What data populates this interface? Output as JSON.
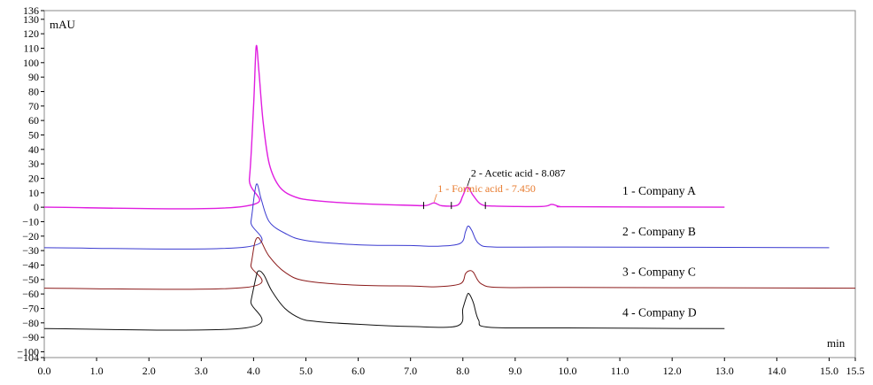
{
  "chart_data": {
    "type": "line",
    "xlabel": "min",
    "ylabel": "mAU",
    "xlim": [
      0.0,
      15.5
    ],
    "ylim": [
      -104,
      136
    ],
    "x_ticks": [
      "0.0",
      "1.0",
      "2.0",
      "3.0",
      "4.0",
      "5.0",
      "6.0",
      "7.0",
      "8.0",
      "9.0",
      "10.0",
      "11.0",
      "12.0",
      "13.0",
      "14.0",
      "15.0",
      "15.5"
    ],
    "x_tick_values": [
      0,
      1,
      2,
      3,
      4,
      5,
      6,
      7,
      8,
      9,
      10,
      11,
      12,
      13,
      14,
      15,
      15.5
    ],
    "y_ticks": [
      "136",
      "130",
      "120",
      "110",
      "100",
      "90",
      "80",
      "70",
      "60",
      "50",
      "40",
      "30",
      "20",
      "10",
      "0",
      "−10",
      "−20",
      "−30",
      "−40",
      "−50",
      "−60",
      "−70",
      "−80",
      "−90",
      "−100",
      "−104"
    ],
    "y_tick_values": [
      136,
      130,
      120,
      110,
      100,
      90,
      80,
      70,
      60,
      50,
      40,
      30,
      20,
      10,
      0,
      -10,
      -20,
      -30,
      -40,
      -50,
      -60,
      -70,
      -80,
      -90,
      -100,
      -104
    ],
    "grid": false,
    "series": [
      {
        "name": "1 - Company A",
        "color": "#e01ee0",
        "x": [
          0.0,
          3.8,
          3.92,
          4.0,
          4.05,
          4.1,
          4.18,
          4.3,
          4.5,
          4.8,
          5.2,
          6.0,
          7.0,
          7.3,
          7.45,
          7.6,
          7.9,
          8.0,
          8.087,
          8.2,
          8.35,
          8.6,
          9.5,
          9.7,
          9.85,
          10.1,
          13.0
        ],
        "values": [
          0.0,
          0.5,
          20,
          70,
          111,
          95,
          60,
          30,
          14,
          7,
          4.5,
          2.5,
          1.3,
          1.2,
          3.0,
          1.0,
          1.5,
          8,
          14,
          8,
          2,
          0.8,
          0.5,
          2.0,
          0.5,
          0.3,
          0.0
        ]
      },
      {
        "name": "2 - Company B",
        "color": "#3a3ad0",
        "x": [
          0.0,
          3.85,
          3.95,
          4.02,
          4.07,
          4.15,
          4.3,
          4.6,
          5.0,
          6.0,
          7.0,
          7.5,
          7.95,
          8.05,
          8.1,
          8.17,
          8.3,
          8.6,
          10.0,
          15.0
        ],
        "values": [
          -28.0,
          -27.5,
          -10,
          10,
          16,
          5,
          -10,
          -18,
          -23,
          -26,
          -26.5,
          -27,
          -25,
          -17,
          -13,
          -16,
          -25,
          -27.5,
          -27.5,
          -28
        ]
      },
      {
        "name": "3 - Company C",
        "color": "#8b1a1a",
        "x": [
          0.0,
          3.85,
          3.95,
          4.02,
          4.08,
          4.15,
          4.3,
          4.6,
          5.0,
          6.0,
          7.0,
          7.5,
          7.95,
          8.05,
          8.12,
          8.2,
          8.35,
          8.7,
          10.0,
          15.5
        ],
        "values": [
          -56.0,
          -55.5,
          -40,
          -25,
          -21,
          -24,
          -34,
          -45,
          -51,
          -54,
          -54.5,
          -55,
          -53,
          -46,
          -44,
          -45,
          -53,
          -55.5,
          -55.5,
          -56
        ]
      },
      {
        "name": "4 - Company D",
        "color": "#111111",
        "x": [
          0.0,
          3.85,
          3.95,
          4.05,
          4.1,
          4.2,
          4.35,
          4.6,
          4.9,
          5.2,
          6.0,
          7.0,
          7.9,
          8.0,
          8.08,
          8.12,
          8.2,
          8.3,
          8.5,
          10.0,
          13.0
        ],
        "values": [
          -84.0,
          -83.5,
          -65,
          -48,
          -44,
          -47,
          -58,
          -70,
          -77,
          -79,
          -81,
          -82.5,
          -82,
          -70,
          -61,
          -60,
          -66,
          -78,
          -83,
          -83.5,
          -84
        ]
      }
    ],
    "annotations": [
      {
        "text": "2 - Acetic acid - 8.087",
        "x": 8.087,
        "y": 14,
        "color": "#000000"
      },
      {
        "text": "1 - Formic acid - 7.450",
        "x": 7.45,
        "y": 3.0,
        "color": "#e87b2e"
      }
    ],
    "integration_marks": [
      7.25,
      7.78,
      8.43
    ]
  }
}
